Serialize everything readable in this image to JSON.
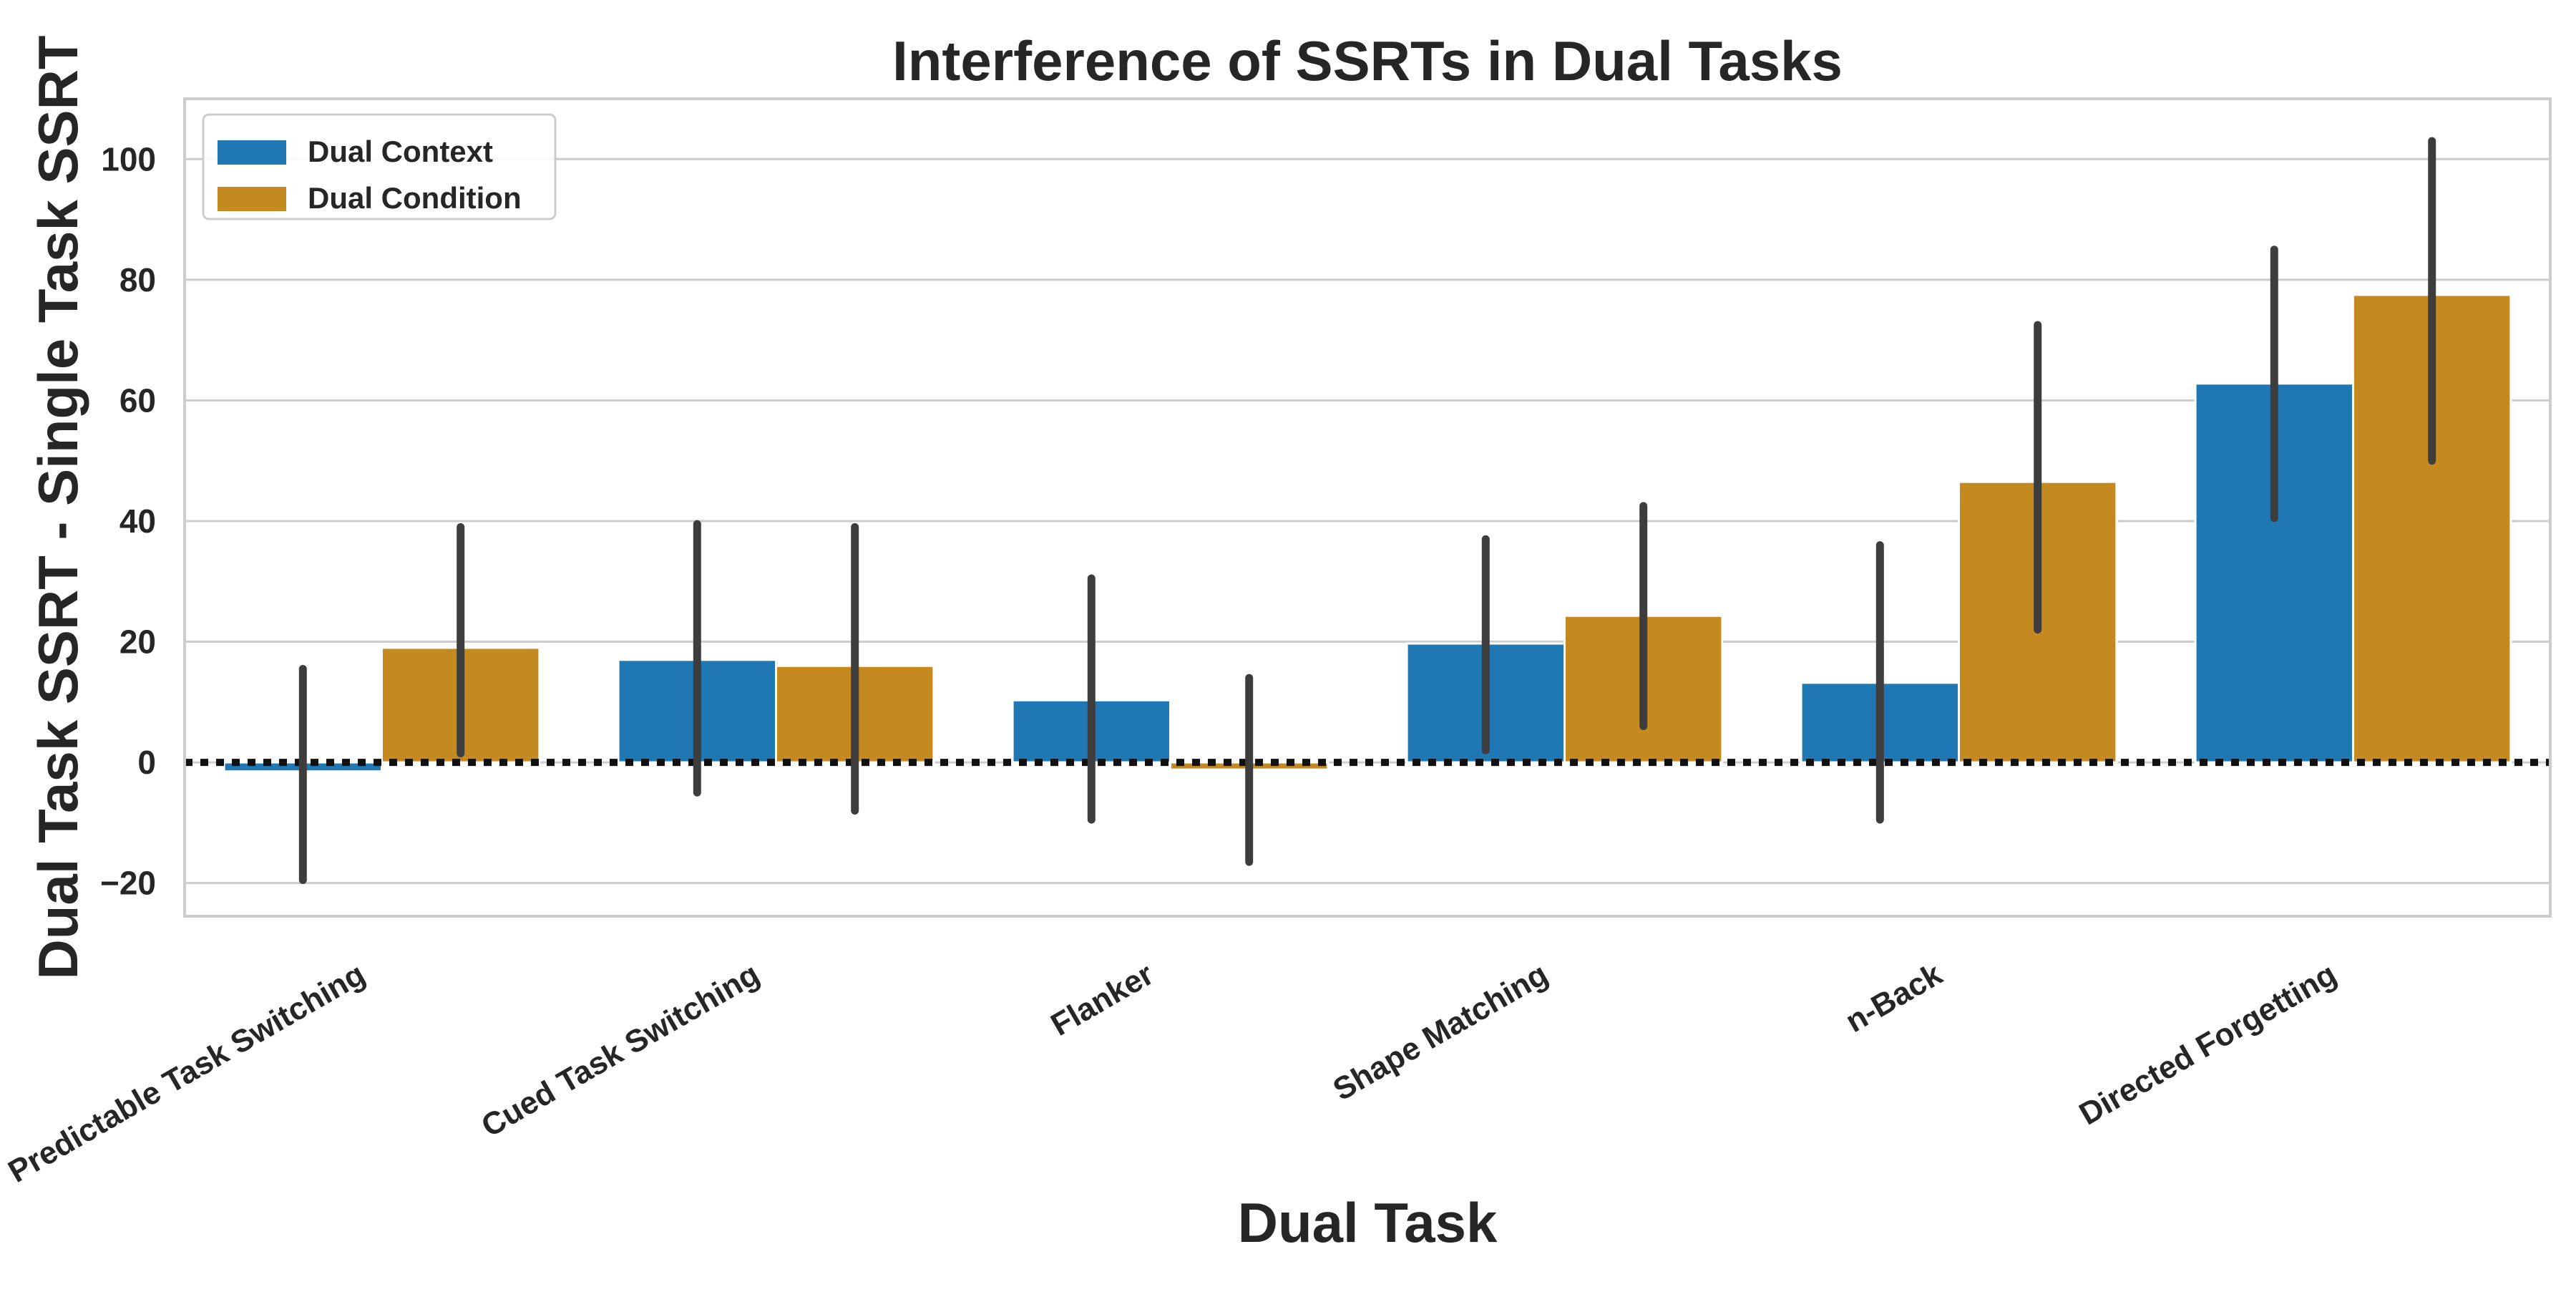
{
  "chart_data": {
    "type": "bar",
    "title": "Interference of SSRTs in Dual Tasks",
    "xlabel": "Dual Task",
    "ylabel": "Dual Task SSRT - Single Task SSRT",
    "categories": [
      "Predictable Task Switching",
      "Cued Task Switching",
      "Flanker",
      "Shape Matching",
      "n-Back",
      "Directed Forgetting"
    ],
    "series": [
      {
        "name": "Dual Context",
        "color": "#1f77b4",
        "values": [
          -1.5,
          17,
          10.3,
          19.7,
          13.2,
          62.8
        ],
        "error_low": [
          -19.5,
          -5,
          -9.5,
          2,
          -9.5,
          40.5
        ],
        "error_high": [
          15.5,
          39.5,
          30.5,
          37,
          36,
          85
        ]
      },
      {
        "name": "Dual Condition",
        "color": "#c48a20",
        "values": [
          19,
          16,
          -1.2,
          24.3,
          46.5,
          77.5
        ],
        "error_low": [
          1.5,
          -8,
          -16.5,
          6,
          22,
          50
        ],
        "error_high": [
          39,
          39,
          14,
          42.5,
          72.5,
          103
        ]
      }
    ],
    "yticks": [
      "−20",
      "0",
      "20",
      "40",
      "60",
      "80",
      "100"
    ],
    "ytick_values": [
      -20,
      0,
      20,
      40,
      60,
      80,
      100
    ],
    "ylim": [
      -25.5,
      110
    ],
    "reference_line": 0,
    "grid": "horizontal",
    "legend_position": "top-left",
    "error_bar_color": "#3d3d3d",
    "frame_color": "#cccccc",
    "grid_color": "#cccccc"
  }
}
